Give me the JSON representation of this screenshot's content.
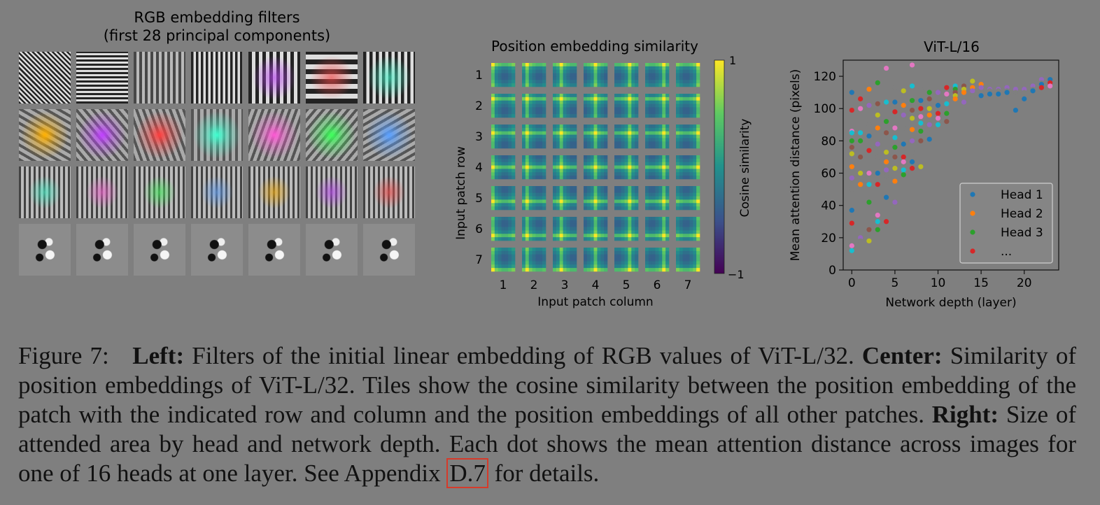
{
  "rgb_panel": {
    "title_line1": "RGB embedding filters",
    "title_line2": "(first 28 principal components)",
    "rows": 4,
    "cols": 7
  },
  "position_panel": {
    "title": "Position embedding similarity",
    "xlabel": "Input patch column",
    "ylabel": "Input patch row",
    "ticks": [
      "1",
      "2",
      "3",
      "4",
      "5",
      "6",
      "7"
    ],
    "colorbar_label": "Cosine similarity",
    "colorbar_max": "1",
    "colorbar_min": "−1"
  },
  "caption": {
    "figure": "Figure 7:",
    "left_label": "Left:",
    "left_text": "Filters of the initial linear embedding of RGB values of ViT-L/32.",
    "center_label": "Center:",
    "center_text": "Similarity of position embeddings of ViT-L/32. Tiles show the cosine similarity between the position embedding of the patch with the indicated row and column and the position embeddings of all other patches.",
    "right_label": "Right:",
    "right_text": "Size of attended area by head and network depth. Each dot shows the mean attention distance across images for one of 16 heads at one layer. See Appendix",
    "ref": "D.7",
    "end_text": "for details."
  },
  "chart_data": {
    "type": "scatter",
    "title": "ViT-L/16",
    "xlabel": "Network depth (layer)",
    "ylabel": "Mean attention distance (pixels)",
    "xlim": [
      -1,
      24
    ],
    "ylim": [
      0,
      130
    ],
    "xticks": [
      0,
      5,
      10,
      15,
      20
    ],
    "yticks": [
      0,
      20,
      40,
      60,
      80,
      100,
      120
    ],
    "legend": [
      "Head 1",
      "Head 2",
      "Head 3",
      "..."
    ],
    "legend_position": "lower-right",
    "grid": false,
    "colors": [
      "#1f77b4",
      "#ff7f0e",
      "#2ca02c",
      "#d62728",
      "#9467bd",
      "#8c564b",
      "#e377c2",
      "#7f7f7f",
      "#bcbd22",
      "#17becf"
    ],
    "points": [
      [
        0,
        110
      ],
      [
        0,
        99
      ],
      [
        0,
        86
      ],
      [
        0,
        85
      ],
      [
        0,
        80
      ],
      [
        0,
        76
      ],
      [
        0,
        72
      ],
      [
        0,
        64
      ],
      [
        0,
        57
      ],
      [
        0,
        50
      ],
      [
        0,
        37
      ],
      [
        0,
        29
      ],
      [
        0,
        15
      ],
      [
        0,
        12
      ],
      [
        1,
        106
      ],
      [
        1,
        100
      ],
      [
        1,
        85
      ],
      [
        1,
        80
      ],
      [
        1,
        70
      ],
      [
        1,
        60
      ],
      [
        1,
        53
      ],
      [
        1,
        20
      ],
      [
        1,
        18
      ],
      [
        2,
        112
      ],
      [
        2,
        102
      ],
      [
        2,
        90
      ],
      [
        2,
        83
      ],
      [
        2,
        74
      ],
      [
        2,
        60
      ],
      [
        2,
        53
      ],
      [
        2,
        42
      ],
      [
        2,
        25
      ],
      [
        2,
        18
      ],
      [
        3,
        116
      ],
      [
        3,
        103
      ],
      [
        3,
        96
      ],
      [
        3,
        88
      ],
      [
        3,
        78
      ],
      [
        3,
        70
      ],
      [
        3,
        60
      ],
      [
        3,
        53
      ],
      [
        3,
        34
      ],
      [
        3,
        30
      ],
      [
        3,
        25
      ],
      [
        4,
        125
      ],
      [
        4,
        104
      ],
      [
        4,
        92
      ],
      [
        4,
        85
      ],
      [
        4,
        73
      ],
      [
        4,
        67
      ],
      [
        4,
        62
      ],
      [
        4,
        58
      ],
      [
        4,
        45
      ],
      [
        4,
        30
      ],
      [
        5,
        113
      ],
      [
        5,
        104
      ],
      [
        5,
        98
      ],
      [
        5,
        88
      ],
      [
        5,
        82
      ],
      [
        5,
        76
      ],
      [
        5,
        70
      ],
      [
        5,
        63
      ],
      [
        5,
        55
      ],
      [
        5,
        42
      ],
      [
        6,
        111
      ],
      [
        6,
        102
      ],
      [
        6,
        96
      ],
      [
        6,
        88
      ],
      [
        6,
        78
      ],
      [
        6,
        70
      ],
      [
        6,
        67
      ],
      [
        6,
        62
      ],
      [
        6,
        59
      ],
      [
        7,
        127
      ],
      [
        7,
        114
      ],
      [
        7,
        105
      ],
      [
        7,
        99
      ],
      [
        7,
        94
      ],
      [
        7,
        87
      ],
      [
        7,
        80
      ],
      [
        7,
        73
      ],
      [
        7,
        67
      ],
      [
        7,
        63
      ],
      [
        8,
        112
      ],
      [
        8,
        105
      ],
      [
        8,
        100
      ],
      [
        8,
        95
      ],
      [
        8,
        91
      ],
      [
        8,
        86
      ],
      [
        8,
        80
      ],
      [
        8,
        64
      ],
      [
        9,
        110
      ],
      [
        9,
        106
      ],
      [
        9,
        100
      ],
      [
        9,
        96
      ],
      [
        9,
        90
      ],
      [
        9,
        84
      ],
      [
        9,
        81
      ],
      [
        10,
        110
      ],
      [
        10,
        106
      ],
      [
        10,
        102
      ],
      [
        10,
        97
      ],
      [
        10,
        94
      ],
      [
        10,
        90
      ],
      [
        11,
        113
      ],
      [
        11,
        109
      ],
      [
        11,
        103
      ],
      [
        11,
        97
      ],
      [
        11,
        92
      ],
      [
        12,
        114
      ],
      [
        12,
        112
      ],
      [
        12,
        110
      ],
      [
        12,
        108
      ],
      [
        12,
        106
      ],
      [
        13,
        114
      ],
      [
        13,
        112
      ],
      [
        13,
        110
      ],
      [
        13,
        104
      ],
      [
        14,
        117
      ],
      [
        14,
        113
      ],
      [
        14,
        111
      ],
      [
        14,
        108
      ],
      [
        15,
        115
      ],
      [
        15,
        113
      ],
      [
        15,
        110
      ],
      [
        15,
        108
      ],
      [
        16,
        112
      ],
      [
        16,
        111
      ],
      [
        16,
        109
      ],
      [
        17,
        112
      ],
      [
        17,
        111
      ],
      [
        17,
        109
      ],
      [
        18,
        113
      ],
      [
        18,
        111
      ],
      [
        18,
        110
      ],
      [
        19,
        112
      ],
      [
        19,
        110
      ],
      [
        19,
        99
      ],
      [
        20,
        112
      ],
      [
        20,
        110
      ],
      [
        20,
        106
      ],
      [
        21,
        114
      ],
      [
        21,
        112
      ],
      [
        21,
        111
      ],
      [
        22,
        118
      ],
      [
        22,
        116
      ],
      [
        22,
        115
      ],
      [
        22,
        113
      ],
      [
        23,
        120
      ],
      [
        23,
        118
      ],
      [
        23,
        116
      ],
      [
        23,
        114
      ]
    ]
  }
}
